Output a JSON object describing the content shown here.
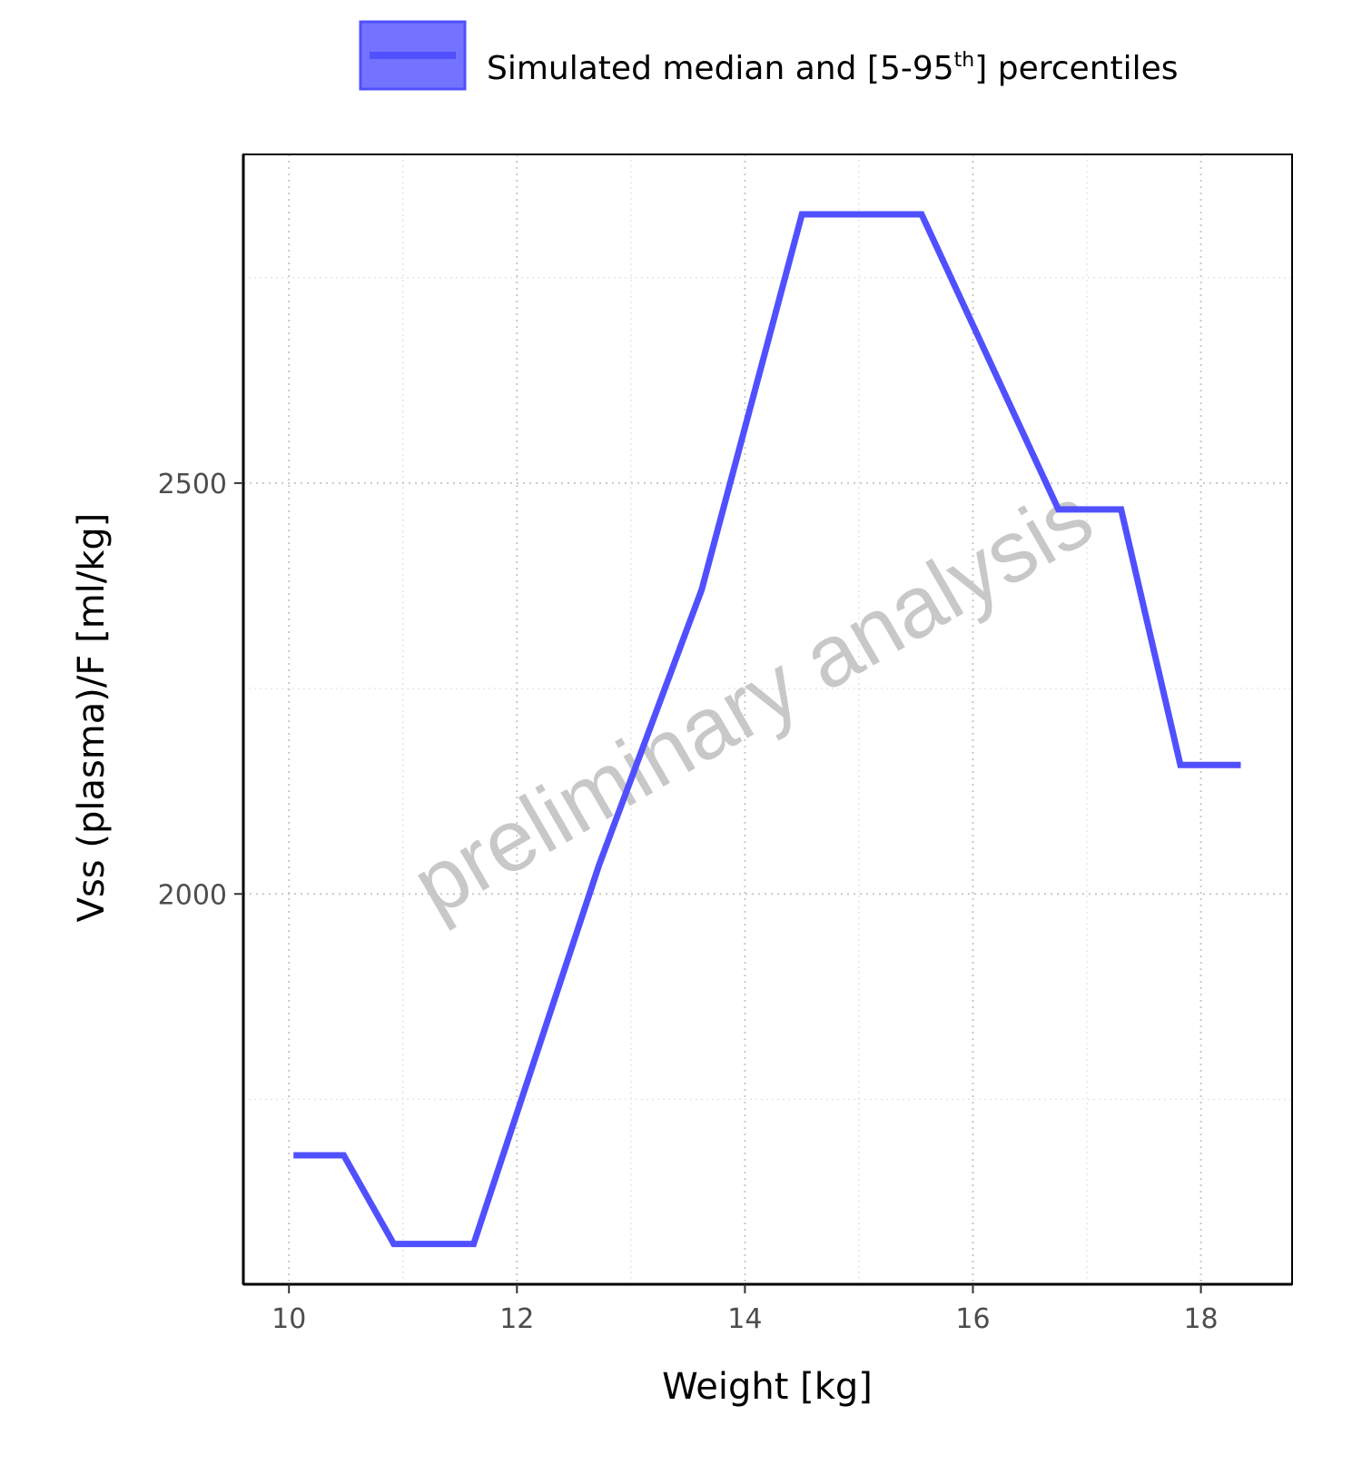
{
  "chart_data": {
    "type": "line",
    "title": "",
    "xlabel": "Weight [kg]",
    "ylabel": "Vss (plasma)/F [ml/kg]",
    "xlim": [
      9.6,
      18.8
    ],
    "ylim": [
      1525,
      2900
    ],
    "x_ticks": [
      10,
      12,
      14,
      16,
      18
    ],
    "y_ticks": [
      2000,
      2500
    ],
    "y_minor_grid": [
      1750,
      2250,
      2750
    ],
    "x_minor_grid": [
      11,
      13,
      15,
      17
    ],
    "grid": true,
    "grid_style": "dotted",
    "legend_position": "top",
    "watermark": "preliminary analysis",
    "series": [
      {
        "name": "Simulated median and [5-95th] percentiles",
        "color": "#5050ff",
        "x": [
          10.04,
          10.48,
          10.92,
          11.62,
          12.72,
          13.62,
          14.5,
          15.55,
          16.75,
          17.3,
          17.82,
          18.35
        ],
        "y": [
          1682,
          1682,
          1574,
          1574,
          2035,
          2370,
          2827,
          2827,
          2468,
          2468,
          2157,
          2157
        ]
      }
    ]
  },
  "legend": {
    "label_main": "Simulated median and [5-95",
    "label_sup": "th",
    "label_end": "] percentiles",
    "swatch_fill": "#7373ff",
    "swatch_line": "#5050ff"
  }
}
